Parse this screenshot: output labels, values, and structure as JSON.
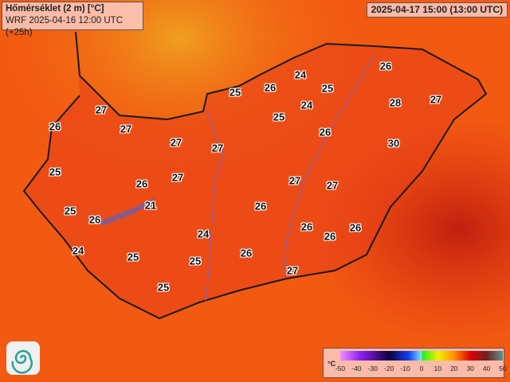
{
  "header": {
    "title": "Hőmérséklet (2 m) [°C]",
    "model_run": "WRF 2025-04-16 12:00 UTC (+25h)",
    "valid_time": "2025-04-17 15:00 (13:00 UTC)"
  },
  "map": {
    "variable": "2 m temperature",
    "region": "Hungary",
    "labels": [
      26,
      24,
      26,
      25,
      25,
      27,
      24,
      28,
      27,
      25,
      27,
      26,
      26,
      27,
      27,
      30,
      25,
      27,
      27,
      27,
      26,
      25,
      21,
      26,
      26,
      26,
      26,
      26,
      24,
      24,
      25,
      25,
      26,
      27,
      25
    ]
  },
  "legend": {
    "unit": "°C",
    "ticks": [
      "-50",
      "-40",
      "-30",
      "-20",
      "-10",
      "0",
      "10",
      "20",
      "30",
      "40",
      "50"
    ],
    "colors": [
      "#f090ff",
      "#9020f0",
      "#100040",
      "#1040f0",
      "#80e0ff",
      "#20f020",
      "#f0f000",
      "#ff9000",
      "#e00000",
      "#702020",
      "#609090"
    ]
  },
  "logo": {
    "icon": "swirl-logo-icon"
  }
}
